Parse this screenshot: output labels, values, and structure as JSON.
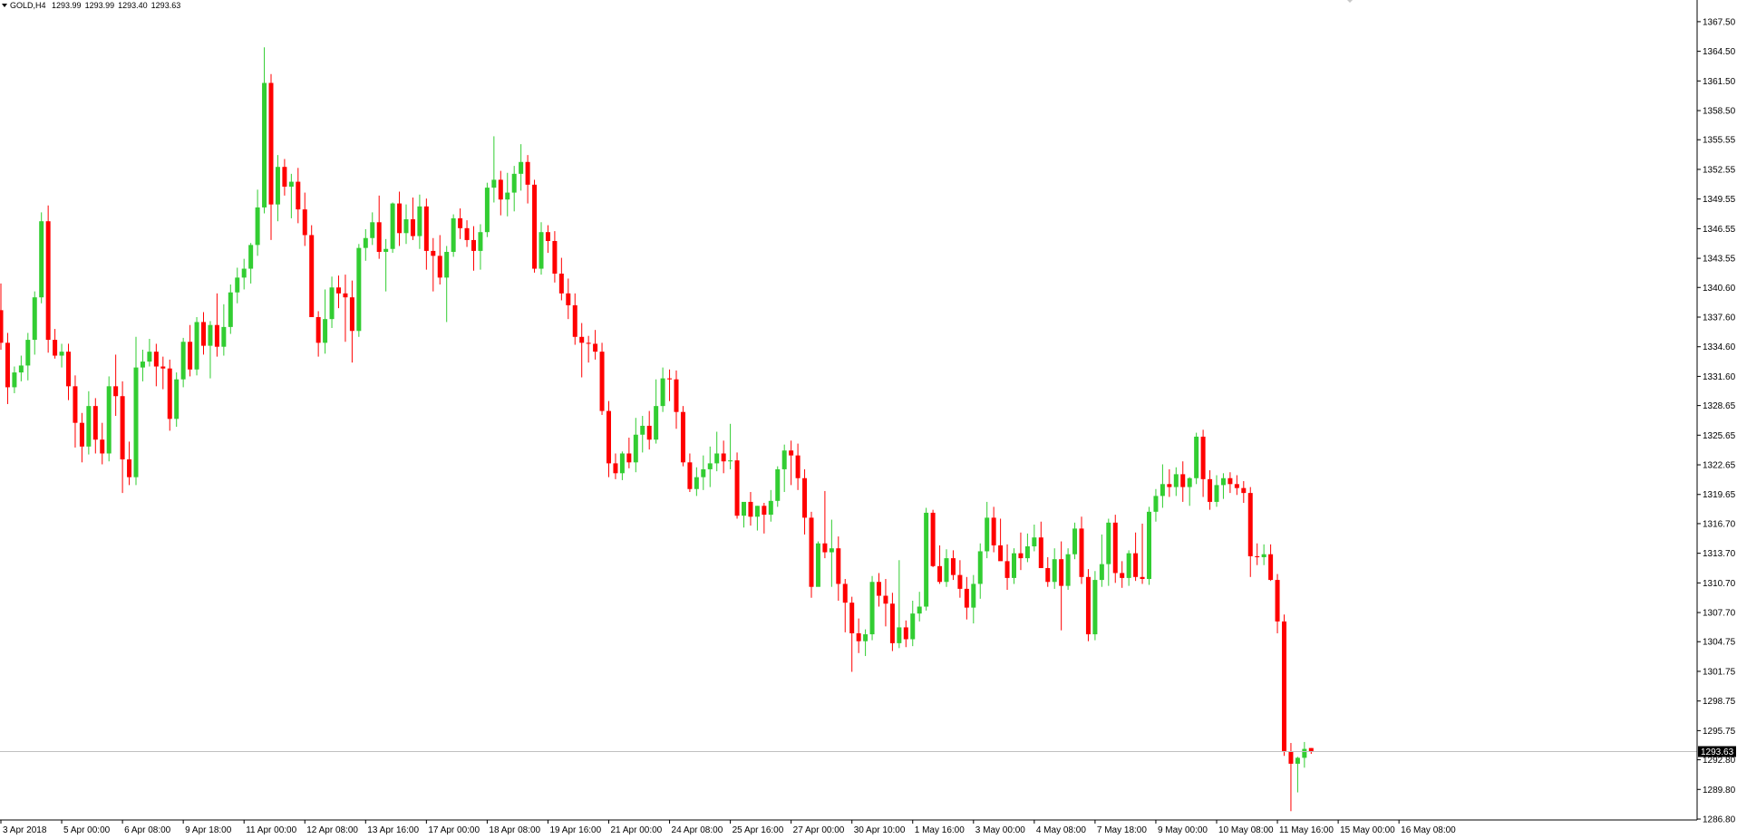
{
  "header": {
    "symbol": "GOLD,H4",
    "quote": {
      "open": "1293.99",
      "high": "1293.99",
      "low": "1293.40",
      "close": "1293.63"
    }
  },
  "colors": {
    "background": "#ffffff",
    "bull": "#32cd32",
    "bear": "#ff0000",
    "axis": "#000000",
    "bid_line": "#c0c0c0",
    "price_tag_bg": "#000000",
    "price_tag_fg": "#ffffff"
  },
  "icons": {
    "header_menu": "dropdown-triangle-icon",
    "corner_marker": "shift-marker-icon"
  },
  "chart_data": {
    "type": "candlestick",
    "symbol": "GOLD",
    "timeframe": "H4",
    "current_price": 1293.63,
    "price_tag": "1293.63",
    "ylim": [
      1286.8,
      1368.5
    ],
    "grid": false,
    "y_ticks": [
      "1367.50",
      "1364.50",
      "1361.50",
      "1358.50",
      "1355.55",
      "1352.55",
      "1349.55",
      "1346.55",
      "1343.55",
      "1340.60",
      "1337.60",
      "1334.60",
      "1331.60",
      "1328.65",
      "1325.65",
      "1322.65",
      "1319.65",
      "1316.70",
      "1313.70",
      "1310.70",
      "1307.70",
      "1304.75",
      "1301.75",
      "1298.75",
      "1295.75",
      "1292.80",
      "1289.80",
      "1286.80"
    ],
    "x_ticks": [
      {
        "label": "3 Apr 2018",
        "bar": 0
      },
      {
        "label": "5 Apr 00:00",
        "bar": 9
      },
      {
        "label": "6 Apr 08:00",
        "bar": 18
      },
      {
        "label": "9 Apr 18:00",
        "bar": 27
      },
      {
        "label": "11 Apr 00:00",
        "bar": 36
      },
      {
        "label": "12 Apr 08:00",
        "bar": 45
      },
      {
        "label": "13 Apr 16:00",
        "bar": 54
      },
      {
        "label": "17 Apr 00:00",
        "bar": 63
      },
      {
        "label": "18 Apr 08:00",
        "bar": 72
      },
      {
        "label": "19 Apr 16:00",
        "bar": 81
      },
      {
        "label": "21 Apr 00:00",
        "bar": 90
      },
      {
        "label": "24 Apr 08:00",
        "bar": 99
      },
      {
        "label": "25 Apr 16:00",
        "bar": 108
      },
      {
        "label": "27 Apr 00:00",
        "bar": 117
      },
      {
        "label": "30 Apr 10:00",
        "bar": 126
      },
      {
        "label": "1 May 16:00",
        "bar": 135
      },
      {
        "label": "3 May 00:00",
        "bar": 144
      },
      {
        "label": "4 May 08:00",
        "bar": 153
      },
      {
        "label": "7 May 18:00",
        "bar": 162
      },
      {
        "label": "9 May 00:00",
        "bar": 171
      },
      {
        "label": "10 May 08:00",
        "bar": 180
      },
      {
        "label": "11 May 16:00",
        "bar": 189
      },
      {
        "label": "15 May 00:00",
        "bar": 198
      },
      {
        "label": "16 May 08:00",
        "bar": 207
      }
    ],
    "candles": [
      [
        1338.3,
        1341.0,
        1334.3,
        1335.0
      ],
      [
        1335.0,
        1336.0,
        1328.8,
        1330.5
      ],
      [
        1330.5,
        1332.6,
        1329.9,
        1332.0
      ],
      [
        1332.0,
        1333.7,
        1331.1,
        1332.7
      ],
      [
        1332.7,
        1336.0,
        1331.2,
        1335.3
      ],
      [
        1335.3,
        1340.2,
        1333.8,
        1339.6
      ],
      [
        1339.6,
        1348.2,
        1339.0,
        1347.3
      ],
      [
        1347.3,
        1348.9,
        1334.0,
        1335.3
      ],
      [
        1335.3,
        1336.4,
        1333.4,
        1333.7
      ],
      [
        1333.7,
        1334.9,
        1332.5,
        1334.1
      ],
      [
        1334.1,
        1334.9,
        1329.2,
        1330.6
      ],
      [
        1330.6,
        1331.7,
        1324.4,
        1326.9
      ],
      [
        1326.9,
        1327.9,
        1322.9,
        1324.5
      ],
      [
        1324.5,
        1330.1,
        1323.7,
        1328.6
      ],
      [
        1328.6,
        1329.4,
        1323.8,
        1325.2
      ],
      [
        1325.2,
        1326.9,
        1322.7,
        1323.8
      ],
      [
        1323.8,
        1331.6,
        1323.0,
        1330.6
      ],
      [
        1330.6,
        1333.8,
        1327.6,
        1329.6
      ],
      [
        1329.6,
        1331.1,
        1319.8,
        1323.2
      ],
      [
        1323.2,
        1325.0,
        1320.6,
        1321.4
      ],
      [
        1321.4,
        1335.6,
        1320.6,
        1332.5
      ],
      [
        1332.5,
        1334.3,
        1331.1,
        1333.1
      ],
      [
        1333.1,
        1335.4,
        1332.6,
        1334.1
      ],
      [
        1334.1,
        1334.9,
        1330.6,
        1332.6
      ],
      [
        1332.6,
        1333.6,
        1330.3,
        1332.4
      ],
      [
        1332.4,
        1333.3,
        1326.1,
        1327.3
      ],
      [
        1327.3,
        1332.0,
        1326.5,
        1331.3
      ],
      [
        1331.3,
        1335.5,
        1330.5,
        1335.1
      ],
      [
        1335.1,
        1336.8,
        1331.6,
        1332.3
      ],
      [
        1332.3,
        1337.6,
        1331.7,
        1337.1
      ],
      [
        1337.1,
        1338.1,
        1333.8,
        1334.7
      ],
      [
        1334.7,
        1337.2,
        1331.4,
        1336.8
      ],
      [
        1336.8,
        1340.0,
        1333.6,
        1334.6
      ],
      [
        1334.6,
        1338.9,
        1333.7,
        1336.6
      ],
      [
        1336.6,
        1340.9,
        1335.9,
        1340.1
      ],
      [
        1340.1,
        1342.6,
        1339.0,
        1341.6
      ],
      [
        1341.6,
        1343.5,
        1340.4,
        1342.5
      ],
      [
        1342.5,
        1345.1,
        1341.0,
        1344.9
      ],
      [
        1344.9,
        1350.5,
        1343.8,
        1348.7
      ],
      [
        1348.7,
        1364.9,
        1348.1,
        1361.3
      ],
      [
        1361.3,
        1362.2,
        1345.4,
        1349.0
      ],
      [
        1349.0,
        1354.0,
        1347.3,
        1352.8
      ],
      [
        1352.8,
        1353.6,
        1349.9,
        1350.8
      ],
      [
        1350.8,
        1352.1,
        1347.6,
        1351.3
      ],
      [
        1351.3,
        1352.7,
        1347.1,
        1348.5
      ],
      [
        1348.5,
        1350.2,
        1344.8,
        1345.9
      ],
      [
        1345.9,
        1346.9,
        1338.0,
        1337.6
      ],
      [
        1337.6,
        1338.2,
        1333.6,
        1335.0
      ],
      [
        1335.0,
        1340.4,
        1333.9,
        1337.4
      ],
      [
        1337.4,
        1341.7,
        1336.5,
        1340.6
      ],
      [
        1340.6,
        1341.8,
        1338.5,
        1340.0
      ],
      [
        1340.0,
        1341.9,
        1335.1,
        1339.6
      ],
      [
        1339.6,
        1341.3,
        1333.0,
        1336.2
      ],
      [
        1336.2,
        1345.0,
        1335.6,
        1344.6
      ],
      [
        1344.6,
        1346.5,
        1343.3,
        1345.6
      ],
      [
        1345.6,
        1348.2,
        1344.9,
        1347.2
      ],
      [
        1347.2,
        1349.9,
        1343.5,
        1344.2
      ],
      [
        1344.2,
        1345.5,
        1340.2,
        1344.5
      ],
      [
        1344.5,
        1349.2,
        1344.1,
        1349.1
      ],
      [
        1349.1,
        1350.3,
        1344.8,
        1346.1
      ],
      [
        1346.1,
        1349.0,
        1345.0,
        1347.5
      ],
      [
        1347.5,
        1349.7,
        1345.4,
        1345.8
      ],
      [
        1345.8,
        1350.0,
        1344.5,
        1348.8
      ],
      [
        1348.8,
        1349.6,
        1342.4,
        1344.3
      ],
      [
        1344.3,
        1345.6,
        1340.2,
        1343.8
      ],
      [
        1343.8,
        1345.9,
        1340.9,
        1341.6
      ],
      [
        1341.6,
        1344.8,
        1337.1,
        1344.2
      ],
      [
        1344.2,
        1348.0,
        1343.7,
        1347.6
      ],
      [
        1347.6,
        1348.6,
        1345.5,
        1346.6
      ],
      [
        1346.6,
        1347.4,
        1344.7,
        1345.4
      ],
      [
        1345.4,
        1346.8,
        1342.3,
        1344.3
      ],
      [
        1344.3,
        1347.0,
        1342.4,
        1346.2
      ],
      [
        1346.2,
        1351.2,
        1345.7,
        1350.7
      ],
      [
        1350.7,
        1355.9,
        1349.2,
        1351.5
      ],
      [
        1351.5,
        1352.4,
        1347.9,
        1349.5
      ],
      [
        1349.5,
        1352.2,
        1347.8,
        1350.2
      ],
      [
        1350.2,
        1352.9,
        1348.3,
        1352.1
      ],
      [
        1352.1,
        1355.1,
        1350.4,
        1353.3
      ],
      [
        1353.3,
        1354.0,
        1349.1,
        1351.0
      ],
      [
        1351.0,
        1351.5,
        1342.1,
        1342.5
      ],
      [
        1342.5,
        1347.2,
        1341.9,
        1346.2
      ],
      [
        1346.2,
        1346.9,
        1344.1,
        1345.3
      ],
      [
        1345.3,
        1346.3,
        1341.1,
        1342.0
      ],
      [
        1342.0,
        1343.6,
        1339.3,
        1340.0
      ],
      [
        1340.0,
        1341.5,
        1337.4,
        1338.8
      ],
      [
        1338.8,
        1340.0,
        1334.8,
        1335.6
      ],
      [
        1335.6,
        1337.0,
        1331.5,
        1335.0
      ],
      [
        1335.0,
        1335.7,
        1333.0,
        1334.9
      ],
      [
        1334.9,
        1336.3,
        1333.3,
        1334.1
      ],
      [
        1334.1,
        1335.0,
        1327.7,
        1328.1
      ],
      [
        1328.1,
        1329.1,
        1321.4,
        1322.8
      ],
      [
        1322.8,
        1323.8,
        1321.2,
        1321.8
      ],
      [
        1321.8,
        1324.0,
        1321.1,
        1323.8
      ],
      [
        1323.8,
        1325.4,
        1322.3,
        1322.9
      ],
      [
        1322.9,
        1327.4,
        1321.9,
        1325.7
      ],
      [
        1325.7,
        1327.6,
        1323.9,
        1326.6
      ],
      [
        1326.6,
        1328.1,
        1324.2,
        1325.2
      ],
      [
        1325.2,
        1331.3,
        1324.8,
        1328.6
      ],
      [
        1328.6,
        1332.5,
        1328.0,
        1331.4
      ],
      [
        1331.4,
        1332.3,
        1329.1,
        1331.3
      ],
      [
        1331.3,
        1332.2,
        1326.3,
        1328.0
      ],
      [
        1328.0,
        1328.6,
        1322.5,
        1322.9
      ],
      [
        1322.9,
        1323.8,
        1319.9,
        1320.2
      ],
      [
        1320.2,
        1322.4,
        1319.5,
        1321.4
      ],
      [
        1321.4,
        1323.6,
        1320.1,
        1322.2
      ],
      [
        1322.2,
        1324.5,
        1320.4,
        1322.8
      ],
      [
        1322.8,
        1326.0,
        1322.0,
        1323.8
      ],
      [
        1323.8,
        1325.1,
        1321.8,
        1323.0
      ],
      [
        1323.0,
        1326.8,
        1322.2,
        1323.1
      ],
      [
        1323.1,
        1323.9,
        1317.2,
        1317.5
      ],
      [
        1317.5,
        1318.6,
        1316.3,
        1318.9
      ],
      [
        1318.9,
        1319.9,
        1316.5,
        1317.4
      ],
      [
        1317.4,
        1318.5,
        1316.0,
        1318.5
      ],
      [
        1318.5,
        1318.8,
        1315.7,
        1317.6
      ],
      [
        1317.6,
        1320.1,
        1316.9,
        1319.0
      ],
      [
        1319.0,
        1322.5,
        1318.4,
        1322.2
      ],
      [
        1322.2,
        1324.7,
        1319.9,
        1324.1
      ],
      [
        1324.1,
        1325.1,
        1320.6,
        1323.6
      ],
      [
        1323.6,
        1324.8,
        1320.1,
        1321.3
      ],
      [
        1321.3,
        1322.2,
        1315.6,
        1317.3
      ],
      [
        1317.3,
        1317.9,
        1309.2,
        1310.3
      ],
      [
        1310.3,
        1314.9,
        1310.6,
        1314.7
      ],
      [
        1314.7,
        1320.0,
        1313.2,
        1313.8
      ],
      [
        1313.8,
        1317.1,
        1310.3,
        1314.2
      ],
      [
        1314.2,
        1315.4,
        1308.9,
        1310.6
      ],
      [
        1310.6,
        1311.1,
        1305.7,
        1308.7
      ],
      [
        1308.7,
        1309.3,
        1301.7,
        1305.6
      ],
      [
        1305.6,
        1307.1,
        1303.6,
        1304.8
      ],
      [
        1304.8,
        1306.0,
        1303.3,
        1305.5
      ],
      [
        1305.5,
        1311.4,
        1304.9,
        1310.8
      ],
      [
        1310.8,
        1311.7,
        1308.3,
        1309.4
      ],
      [
        1309.4,
        1311.1,
        1306.3,
        1308.6
      ],
      [
        1308.6,
        1309.7,
        1303.8,
        1304.6
      ],
      [
        1304.6,
        1313.0,
        1304.1,
        1306.2
      ],
      [
        1306.2,
        1306.9,
        1304.2,
        1305.0
      ],
      [
        1305.0,
        1308.9,
        1304.3,
        1307.6
      ],
      [
        1307.6,
        1309.8,
        1306.8,
        1308.3
      ],
      [
        1308.3,
        1318.3,
        1307.9,
        1317.8
      ],
      [
        1317.8,
        1318.1,
        1312.3,
        1312.4
      ],
      [
        1312.4,
        1314.5,
        1310.6,
        1310.8
      ],
      [
        1310.8,
        1314.1,
        1310.3,
        1313.2
      ],
      [
        1313.2,
        1314.0,
        1311.0,
        1311.5
      ],
      [
        1311.5,
        1313.0,
        1309.2,
        1310.1
      ],
      [
        1310.1,
        1311.3,
        1307.0,
        1308.2
      ],
      [
        1308.2,
        1311.5,
        1306.6,
        1310.6
      ],
      [
        1310.6,
        1314.7,
        1309.1,
        1313.9
      ],
      [
        1313.9,
        1318.9,
        1313.2,
        1317.3
      ],
      [
        1317.3,
        1318.4,
        1313.8,
        1314.5
      ],
      [
        1314.5,
        1317.2,
        1313.6,
        1312.9
      ],
      [
        1312.9,
        1314.6,
        1310.0,
        1311.2
      ],
      [
        1311.2,
        1314.2,
        1310.6,
        1313.7
      ],
      [
        1313.7,
        1315.8,
        1312.0,
        1313.2
      ],
      [
        1313.2,
        1315.7,
        1312.8,
        1314.4
      ],
      [
        1314.4,
        1316.6,
        1313.9,
        1315.3
      ],
      [
        1315.3,
        1316.9,
        1312.6,
        1312.2
      ],
      [
        1312.2,
        1313.3,
        1310.3,
        1310.8
      ],
      [
        1310.8,
        1314.2,
        1310.1,
        1313.1
      ],
      [
        1313.1,
        1314.9,
        1305.9,
        1310.4
      ],
      [
        1310.4,
        1314.2,
        1310.0,
        1313.6
      ],
      [
        1313.6,
        1316.8,
        1313.1,
        1316.2
      ],
      [
        1316.2,
        1317.4,
        1310.6,
        1311.3
      ],
      [
        1311.3,
        1312.1,
        1304.8,
        1305.5
      ],
      [
        1305.5,
        1311.9,
        1304.9,
        1311.0
      ],
      [
        1311.0,
        1315.6,
        1310.3,
        1312.6
      ],
      [
        1312.6,
        1317.2,
        1310.4,
        1316.8
      ],
      [
        1316.8,
        1317.6,
        1310.7,
        1311.7
      ],
      [
        1311.7,
        1312.9,
        1310.2,
        1311.2
      ],
      [
        1311.2,
        1314.0,
        1310.4,
        1313.7
      ],
      [
        1313.7,
        1315.8,
        1310.9,
        1311.3
      ],
      [
        1311.3,
        1316.7,
        1310.6,
        1311.1
      ],
      [
        1311.1,
        1318.4,
        1310.5,
        1317.9
      ],
      [
        1317.9,
        1320.2,
        1316.9,
        1319.5
      ],
      [
        1319.5,
        1322.7,
        1318.3,
        1320.7
      ],
      [
        1320.7,
        1322.2,
        1319.4,
        1320.4
      ],
      [
        1320.4,
        1322.4,
        1319.5,
        1321.7
      ],
      [
        1321.7,
        1323.0,
        1318.9,
        1320.4
      ],
      [
        1320.4,
        1321.4,
        1318.5,
        1321.3
      ],
      [
        1321.3,
        1325.9,
        1320.7,
        1325.5
      ],
      [
        1325.5,
        1326.2,
        1319.4,
        1321.2
      ],
      [
        1321.2,
        1322.1,
        1318.1,
        1318.9
      ],
      [
        1318.9,
        1321.6,
        1318.4,
        1320.6
      ],
      [
        1320.6,
        1321.8,
        1319.2,
        1321.3
      ],
      [
        1321.3,
        1321.9,
        1319.8,
        1320.7
      ],
      [
        1320.7,
        1321.6,
        1319.6,
        1320.3
      ],
      [
        1320.3,
        1321.0,
        1318.8,
        1319.8
      ],
      [
        1319.8,
        1320.4,
        1311.3,
        1313.4
      ],
      [
        1313.4,
        1314.7,
        1312.5,
        1313.3
      ],
      [
        1313.3,
        1314.6,
        1312.5,
        1313.6
      ],
      [
        1313.6,
        1314.6,
        1310.9,
        1311.0
      ],
      [
        1311.0,
        1311.6,
        1305.6,
        1306.8
      ],
      [
        1306.8,
        1307.5,
        1293.2,
        1293.6
      ],
      [
        1293.6,
        1294.5,
        1287.6,
        1292.4
      ],
      [
        1292.4,
        1293.1,
        1289.5,
        1293.0
      ],
      [
        1293.0,
        1294.6,
        1292.0,
        1293.9
      ],
      [
        1293.99,
        1293.99,
        1293.4,
        1293.63
      ]
    ]
  }
}
